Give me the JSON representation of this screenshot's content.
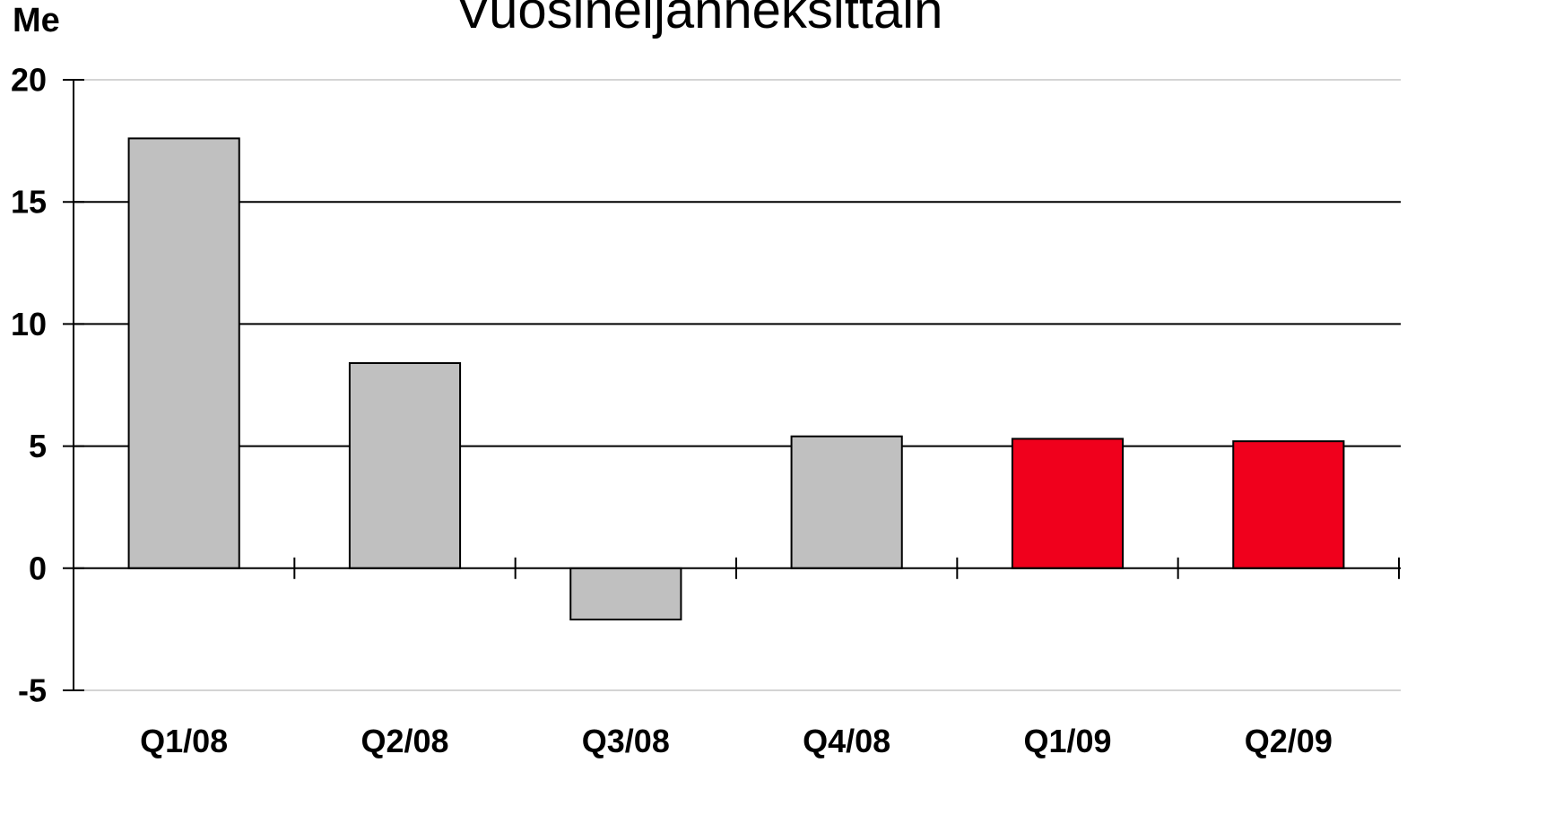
{
  "chart_data": {
    "type": "bar",
    "title": "Vuosineljänneksittäin",
    "ylabel": "Me",
    "xlabel": "",
    "categories": [
      "Q1/08",
      "Q2/08",
      "Q3/08",
      "Q4/08",
      "Q1/09",
      "Q2/09"
    ],
    "values": [
      17.6,
      8.4,
      -2.1,
      5.4,
      5.3,
      5.2
    ],
    "bar_colors": [
      "#c0c0c0",
      "#c0c0c0",
      "#c0c0c0",
      "#c0c0c0",
      "#f0001c",
      "#f0001c"
    ],
    "ylim": [
      -5,
      20
    ],
    "yticks": [
      "-5",
      "0",
      "5",
      "10",
      "15",
      "20"
    ],
    "grid": true,
    "legend": "none"
  },
  "colors": {
    "highlight": "#f0001c",
    "base": "#c0c0c0",
    "grid": "#000000"
  }
}
